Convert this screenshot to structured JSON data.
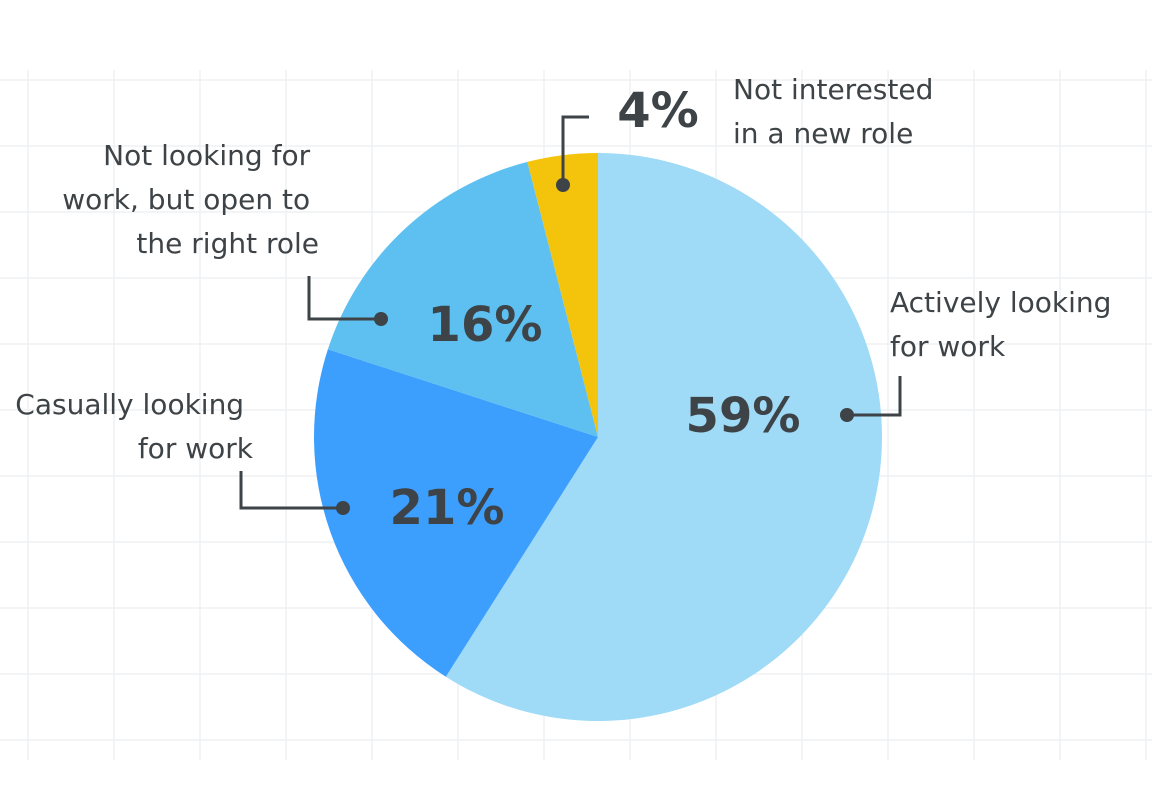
{
  "chart_data": {
    "type": "pie",
    "title": "",
    "slices": [
      {
        "label": [
          "Actively looking",
          "for work"
        ],
        "value": 59,
        "display": "59%",
        "color": "#9fdaf7"
      },
      {
        "label": [
          "Casually looking",
          "for work"
        ],
        "value": 21,
        "display": "21%",
        "color": "#3d9ffd"
      },
      {
        "label": [
          "Not looking for",
          "work, but open to",
          "the right role"
        ],
        "value": 16,
        "display": "16%",
        "color": "#5dc0f0"
      },
      {
        "label": [
          "Not interested",
          "in a new role"
        ],
        "value": 4,
        "display": "4%",
        "color": "#f4c40c"
      }
    ],
    "grid": true,
    "legend": "none (labels placed beside slices with leader lines)"
  }
}
